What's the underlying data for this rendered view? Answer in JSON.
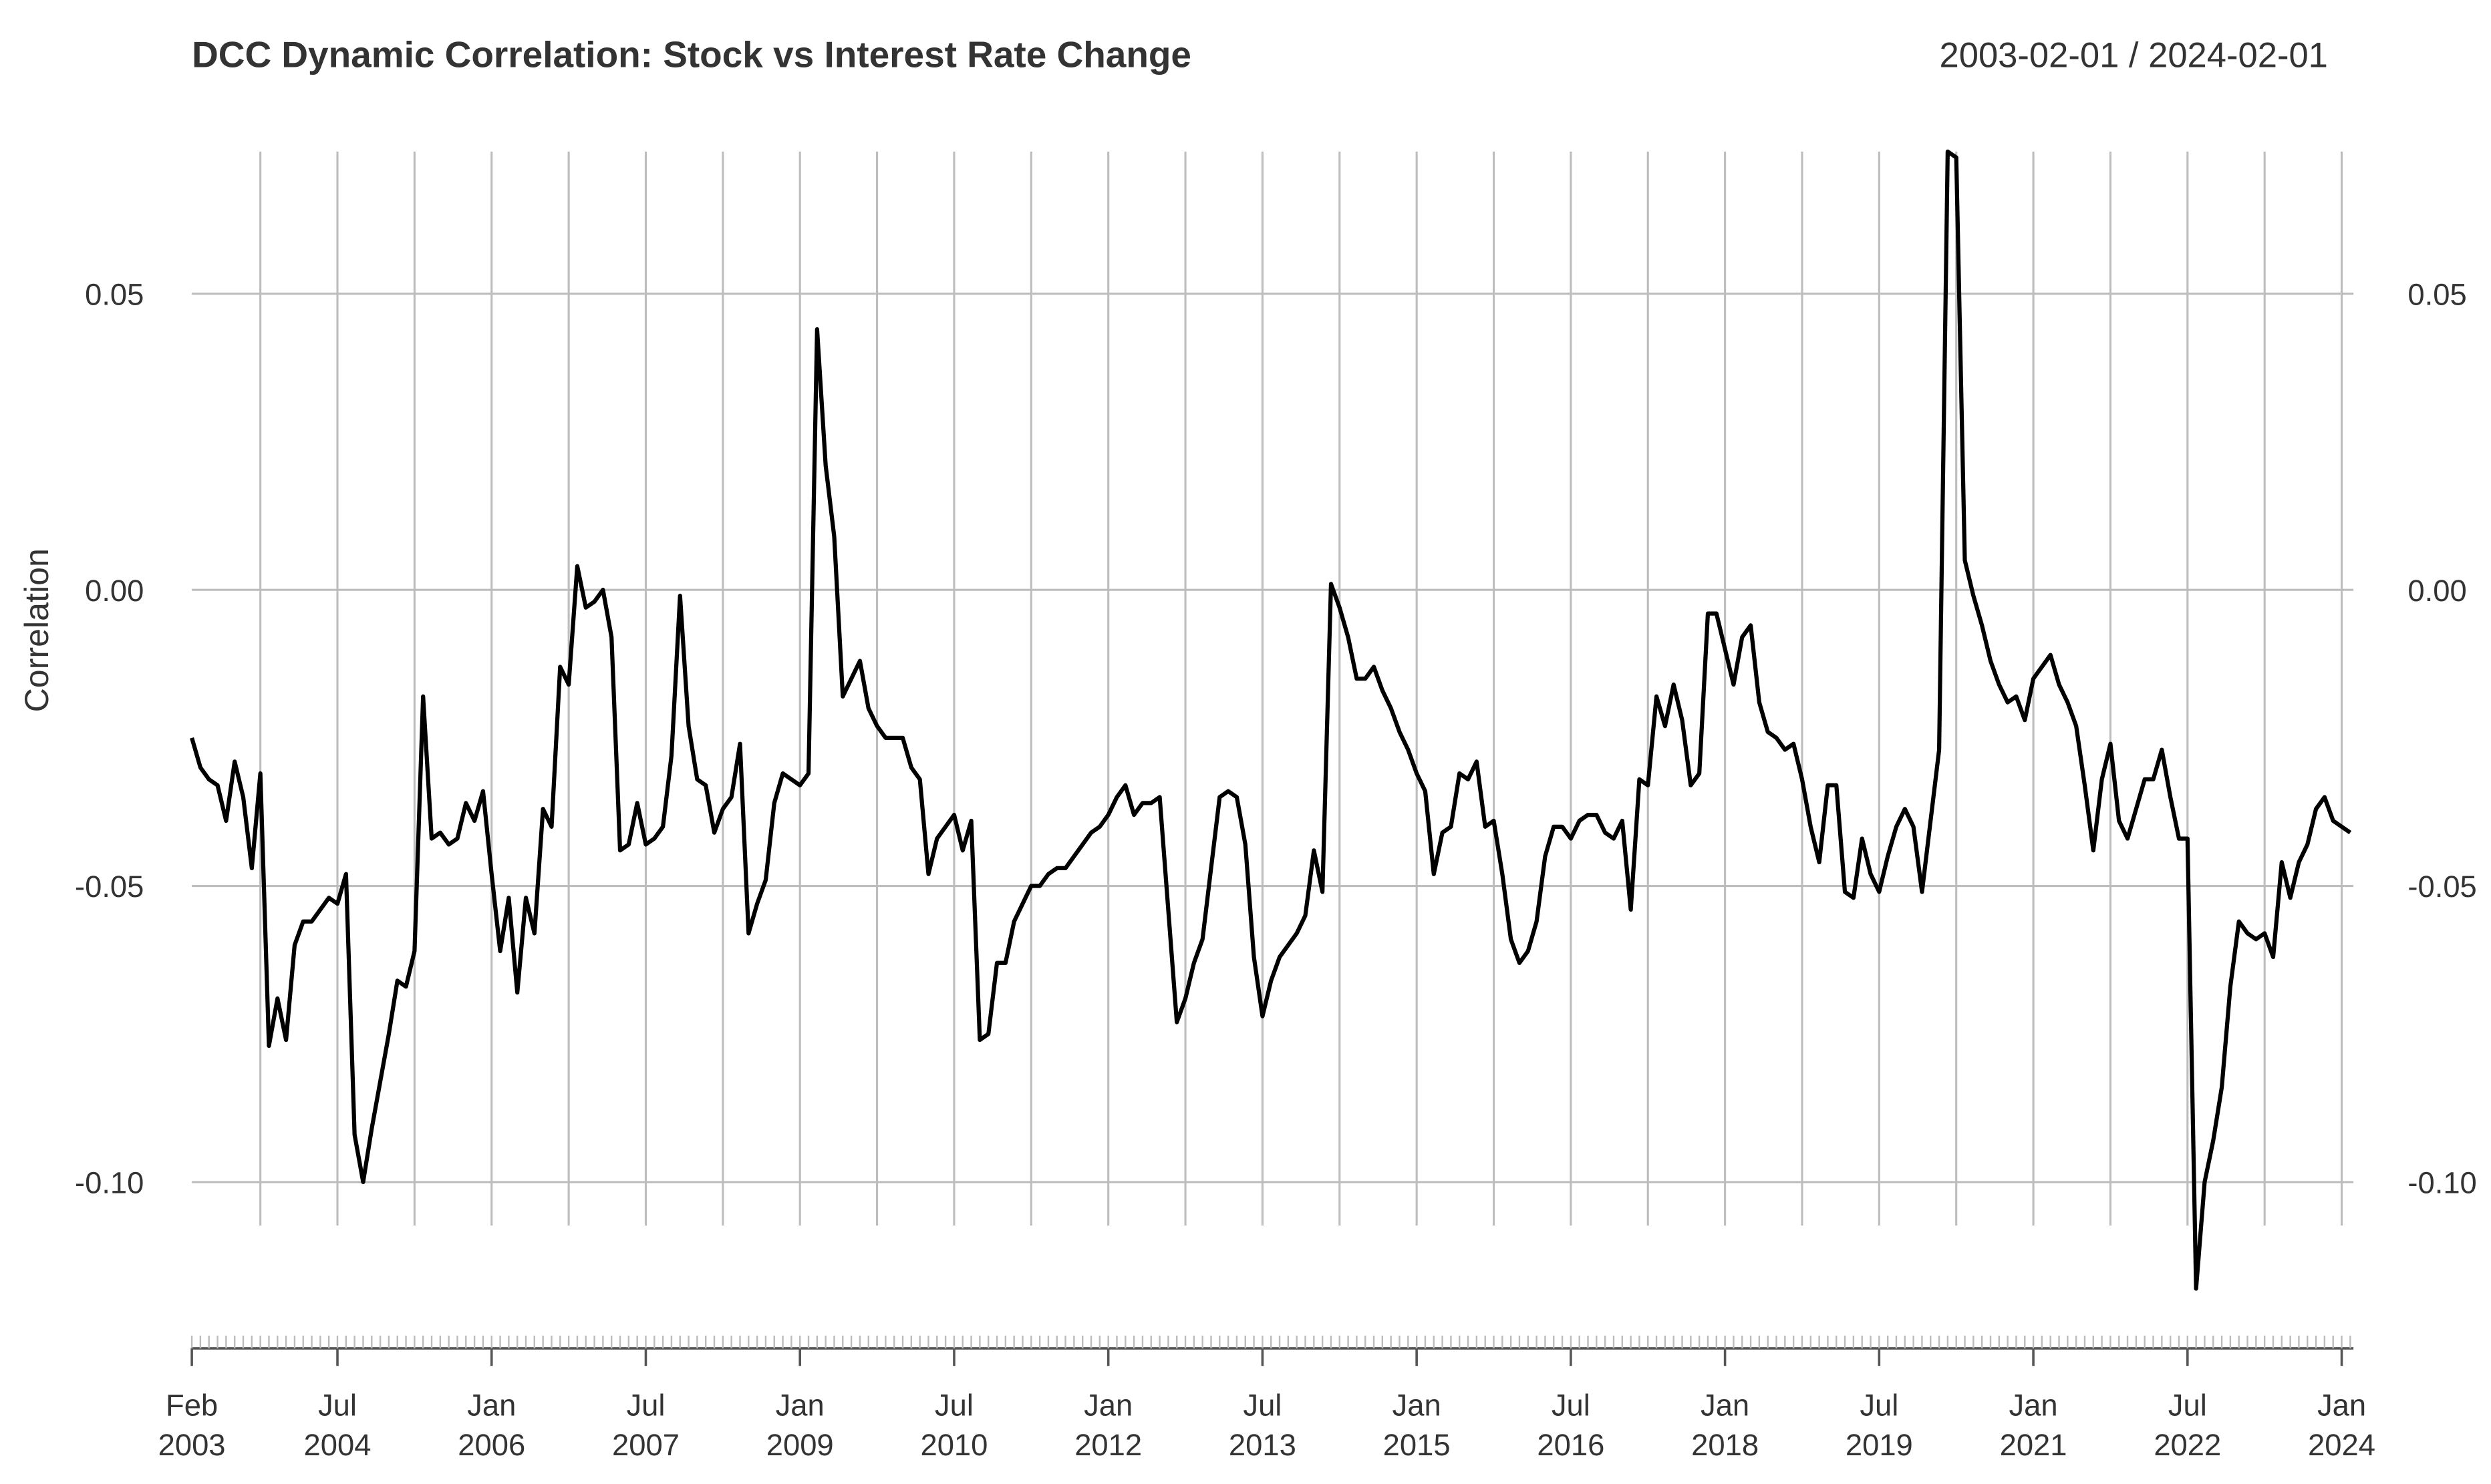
{
  "chart_data": {
    "type": "line",
    "title": "DCC Dynamic Correlation: Stock vs Interest Rate Change",
    "date_range": "2003-02-01 / 2024-02-01",
    "y_label": "Correlation",
    "x": [
      "2003-02",
      "2003-03",
      "2003-04",
      "2003-05",
      "2003-06",
      "2003-07",
      "2003-08",
      "2003-09",
      "2003-10",
      "2003-11",
      "2003-12",
      "2004-01",
      "2004-02",
      "2004-03",
      "2004-04",
      "2004-05",
      "2004-06",
      "2004-07",
      "2004-08",
      "2004-09",
      "2004-10",
      "2004-11",
      "2004-12",
      "2005-01",
      "2005-02",
      "2005-03",
      "2005-04",
      "2005-05",
      "2005-06",
      "2005-07",
      "2005-08",
      "2005-09",
      "2005-10",
      "2005-11",
      "2005-12",
      "2006-01",
      "2006-02",
      "2006-03",
      "2006-04",
      "2006-05",
      "2006-06",
      "2006-07",
      "2006-08",
      "2006-09",
      "2006-10",
      "2006-11",
      "2006-12",
      "2007-01",
      "2007-02",
      "2007-03",
      "2007-04",
      "2007-05",
      "2007-06",
      "2007-07",
      "2007-08",
      "2007-09",
      "2007-10",
      "2007-11",
      "2007-12",
      "2008-01",
      "2008-02",
      "2008-03",
      "2008-04",
      "2008-05",
      "2008-06",
      "2008-07",
      "2008-08",
      "2008-09",
      "2008-10",
      "2008-11",
      "2008-12",
      "2009-01",
      "2009-02",
      "2009-03",
      "2009-04",
      "2009-05",
      "2009-06",
      "2009-07",
      "2009-08",
      "2009-09",
      "2009-10",
      "2009-11",
      "2009-12",
      "2010-01",
      "2010-02",
      "2010-03",
      "2010-04",
      "2010-05",
      "2010-06",
      "2010-07",
      "2010-08",
      "2010-09",
      "2010-10",
      "2010-11",
      "2010-12",
      "2011-01",
      "2011-02",
      "2011-03",
      "2011-04",
      "2011-05",
      "2011-06",
      "2011-07",
      "2011-08",
      "2011-09",
      "2011-10",
      "2011-11",
      "2011-12",
      "2012-01",
      "2012-02",
      "2012-03",
      "2012-04",
      "2012-05",
      "2012-06",
      "2012-07",
      "2012-08",
      "2012-09",
      "2012-10",
      "2012-11",
      "2012-12",
      "2013-01",
      "2013-02",
      "2013-03",
      "2013-04",
      "2013-05",
      "2013-06",
      "2013-07",
      "2013-08",
      "2013-09",
      "2013-10",
      "2013-11",
      "2013-12",
      "2014-01",
      "2014-02",
      "2014-03",
      "2014-04",
      "2014-05",
      "2014-06",
      "2014-07",
      "2014-08",
      "2014-09",
      "2014-10",
      "2014-11",
      "2014-12",
      "2015-01",
      "2015-02",
      "2015-03",
      "2015-04",
      "2015-05",
      "2015-06",
      "2015-07",
      "2015-08",
      "2015-09",
      "2015-10",
      "2015-11",
      "2015-12",
      "2016-01",
      "2016-02",
      "2016-03",
      "2016-04",
      "2016-05",
      "2016-06",
      "2016-07",
      "2016-08",
      "2016-09",
      "2016-10",
      "2016-11",
      "2016-12",
      "2017-01",
      "2017-02",
      "2017-03",
      "2017-04",
      "2017-05",
      "2017-06",
      "2017-07",
      "2017-08",
      "2017-09",
      "2017-10",
      "2017-11",
      "2017-12",
      "2018-01",
      "2018-02",
      "2018-03",
      "2018-04",
      "2018-05",
      "2018-06",
      "2018-07",
      "2018-08",
      "2018-09",
      "2018-10",
      "2018-11",
      "2018-12",
      "2019-01",
      "2019-02",
      "2019-03",
      "2019-04",
      "2019-05",
      "2019-06",
      "2019-07",
      "2019-08",
      "2019-09",
      "2019-10",
      "2019-11",
      "2019-12",
      "2020-01",
      "2020-02",
      "2020-03",
      "2020-04",
      "2020-05",
      "2020-06",
      "2020-07",
      "2020-08",
      "2020-09",
      "2020-10",
      "2020-11",
      "2020-12",
      "2021-01",
      "2021-02",
      "2021-03",
      "2021-04",
      "2021-05",
      "2021-06",
      "2021-07",
      "2021-08",
      "2021-09",
      "2021-10",
      "2021-11",
      "2021-12",
      "2022-01",
      "2022-02",
      "2022-03",
      "2022-04",
      "2022-05",
      "2022-06",
      "2022-07",
      "2022-08",
      "2022-09",
      "2022-10",
      "2022-11",
      "2022-12",
      "2023-01",
      "2023-02",
      "2023-03",
      "2023-04",
      "2023-05",
      "2023-06",
      "2023-07",
      "2023-08",
      "2023-09",
      "2023-10",
      "2023-11",
      "2023-12",
      "2024-01",
      "2024-02"
    ],
    "series": [
      {
        "name": "Correlation",
        "color": "#000000",
        "values": [
          -0.025,
          -0.03,
          -0.032,
          -0.033,
          -0.039,
          -0.029,
          -0.035,
          -0.047,
          -0.031,
          -0.077,
          -0.069,
          -0.076,
          -0.06,
          -0.056,
          -0.056,
          -0.054,
          -0.052,
          -0.053,
          -0.048,
          -0.092,
          -0.1,
          -0.091,
          -0.083,
          -0.075,
          -0.066,
          -0.067,
          -0.061,
          -0.018,
          -0.042,
          -0.041,
          -0.043,
          -0.042,
          -0.036,
          -0.039,
          -0.034,
          -0.048,
          -0.061,
          -0.052,
          -0.068,
          -0.052,
          -0.058,
          -0.037,
          -0.04,
          -0.013,
          -0.016,
          0.004,
          -0.003,
          -0.002,
          0.0,
          -0.008,
          -0.044,
          -0.043,
          -0.036,
          -0.043,
          -0.042,
          -0.04,
          -0.028,
          -0.001,
          -0.023,
          -0.032,
          -0.033,
          -0.041,
          -0.037,
          -0.035,
          -0.026,
          -0.058,
          -0.053,
          -0.049,
          -0.036,
          -0.031,
          -0.032,
          -0.033,
          -0.031,
          0.044,
          0.021,
          0.009,
          -0.018,
          -0.015,
          -0.012,
          -0.02,
          -0.023,
          -0.025,
          -0.025,
          -0.025,
          -0.03,
          -0.032,
          -0.048,
          -0.042,
          -0.04,
          -0.038,
          -0.044,
          -0.039,
          -0.076,
          -0.075,
          -0.063,
          -0.063,
          -0.056,
          -0.053,
          -0.05,
          -0.05,
          -0.048,
          -0.047,
          -0.047,
          -0.045,
          -0.043,
          -0.041,
          -0.04,
          -0.038,
          -0.035,
          -0.033,
          -0.038,
          -0.036,
          -0.036,
          -0.035,
          -0.054,
          -0.073,
          -0.069,
          -0.063,
          -0.059,
          -0.047,
          -0.035,
          -0.034,
          -0.035,
          -0.043,
          -0.062,
          -0.072,
          -0.066,
          -0.062,
          -0.06,
          -0.058,
          -0.055,
          -0.044,
          -0.051,
          0.001,
          -0.003,
          -0.008,
          -0.015,
          -0.015,
          -0.013,
          -0.017,
          -0.02,
          -0.024,
          -0.027,
          -0.031,
          -0.034,
          -0.048,
          -0.041,
          -0.04,
          -0.031,
          -0.032,
          -0.029,
          -0.04,
          -0.039,
          -0.048,
          -0.059,
          -0.063,
          -0.061,
          -0.056,
          -0.045,
          -0.04,
          -0.04,
          -0.042,
          -0.039,
          -0.038,
          -0.038,
          -0.041,
          -0.042,
          -0.039,
          -0.054,
          -0.032,
          -0.033,
          -0.018,
          -0.023,
          -0.016,
          -0.022,
          -0.033,
          -0.031,
          -0.004,
          -0.004,
          -0.01,
          -0.016,
          -0.008,
          -0.006,
          -0.019,
          -0.024,
          -0.025,
          -0.027,
          -0.026,
          -0.032,
          -0.04,
          -0.046,
          -0.033,
          -0.033,
          -0.051,
          -0.052,
          -0.042,
          -0.048,
          -0.051,
          -0.045,
          -0.04,
          -0.037,
          -0.04,
          -0.051,
          -0.039,
          -0.027,
          0.074,
          0.073,
          0.005,
          -0.001,
          -0.006,
          -0.012,
          -0.016,
          -0.019,
          -0.018,
          -0.022,
          -0.015,
          -0.013,
          -0.011,
          -0.016,
          -0.019,
          -0.023,
          -0.033,
          -0.044,
          -0.032,
          -0.026,
          -0.039,
          -0.042,
          -0.037,
          -0.032,
          -0.032,
          -0.027,
          -0.035,
          -0.042,
          -0.042,
          -0.118,
          -0.1,
          -0.093,
          -0.084,
          -0.067,
          -0.056,
          -0.058,
          -0.059,
          -0.058,
          -0.062,
          -0.046,
          -0.052,
          -0.046,
          -0.043,
          -0.037,
          -0.035,
          -0.039,
          -0.04,
          -0.041
        ]
      }
    ],
    "xlim": [
      "2003-02",
      "2024-02"
    ],
    "xticks": [
      {
        "value": "2003-02",
        "label": "Feb 2003"
      },
      {
        "value": "2004-07",
        "label": "Jul 2004"
      },
      {
        "value": "2006-01",
        "label": "Jan 2006"
      },
      {
        "value": "2007-07",
        "label": "Jul 2007"
      },
      {
        "value": "2009-01",
        "label": "Jan 2009"
      },
      {
        "value": "2010-07",
        "label": "Jul 2010"
      },
      {
        "value": "2012-01",
        "label": "Jan 2012"
      },
      {
        "value": "2013-07",
        "label": "Jul 2013"
      },
      {
        "value": "2015-01",
        "label": "Jan 2015"
      },
      {
        "value": "2016-07",
        "label": "Jul 2016"
      },
      {
        "value": "2018-01",
        "label": "Jan 2018"
      },
      {
        "value": "2019-07",
        "label": "Jul 2019"
      },
      {
        "value": "2021-01",
        "label": "Jan 2021"
      },
      {
        "value": "2022-07",
        "label": "Jul 2022"
      },
      {
        "value": "2024-01",
        "label": "Jan 2024"
      }
    ],
    "xgrid": [
      "2003-10",
      "2004-07",
      "2005-04",
      "2006-01",
      "2006-10",
      "2007-07",
      "2008-04",
      "2009-01",
      "2009-10",
      "2010-07",
      "2011-04",
      "2012-01",
      "2012-10",
      "2013-07",
      "2014-04",
      "2015-01",
      "2015-10",
      "2016-07",
      "2017-04",
      "2018-01",
      "2018-10",
      "2019-07",
      "2020-04",
      "2021-01",
      "2021-10",
      "2022-07",
      "2023-04",
      "2024-01"
    ],
    "ylim": [
      -0.12,
      0.074
    ],
    "yticks": [
      {
        "value": 0.05,
        "label": "0.05"
      },
      {
        "value": 0,
        "label": "0.00"
      },
      {
        "value": -0.05,
        "label": "-0.05"
      },
      {
        "value": -0.1,
        "label": "-0.10"
      }
    ],
    "grid": true
  }
}
